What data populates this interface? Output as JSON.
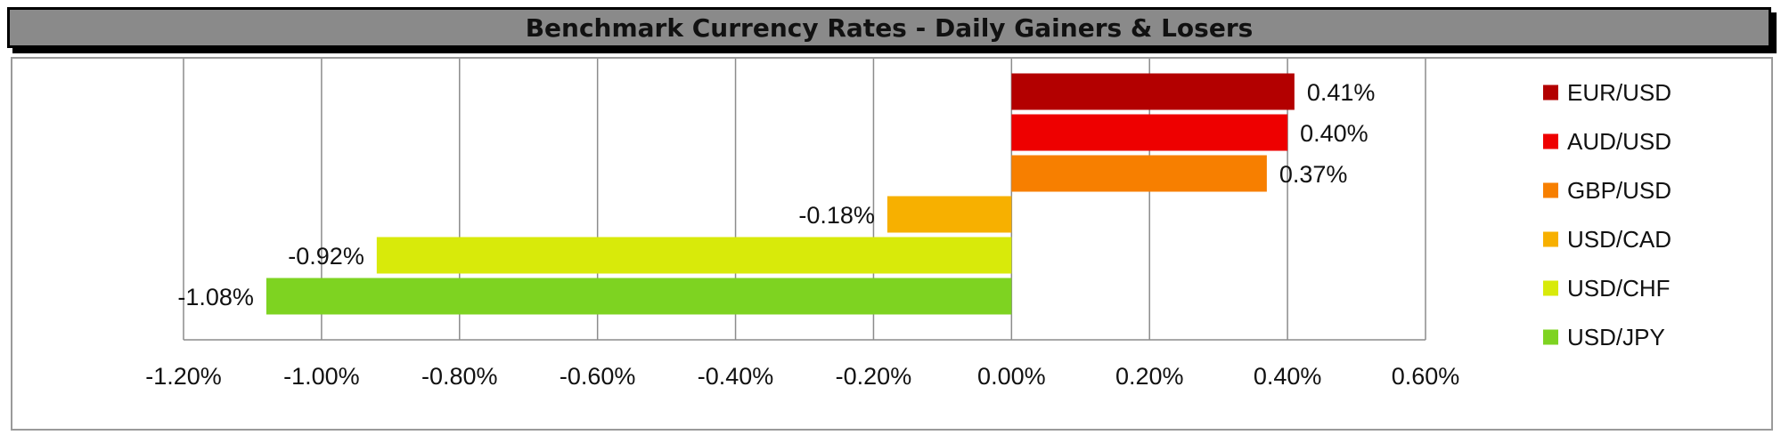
{
  "title": "Benchmark Currency Rates - Daily Gainers & Losers",
  "chart_data": {
    "type": "bar",
    "orientation": "horizontal",
    "categories": [
      "EUR/USD",
      "AUD/USD",
      "GBP/USD",
      "USD/CAD",
      "USD/CHF",
      "USD/JPY"
    ],
    "values": [
      0.41,
      0.4,
      0.37,
      -0.18,
      -0.92,
      -1.08
    ],
    "value_labels": [
      "0.41%",
      "0.40%",
      "0.37%",
      "-0.18%",
      "-0.92%",
      "-1.08%"
    ],
    "colors": [
      "#b30000",
      "#ee0000",
      "#f77f00",
      "#f7b000",
      "#d8ea0a",
      "#7ed321"
    ],
    "xlim": [
      -1.2,
      0.6
    ],
    "x_ticks": [
      -1.2,
      -1.0,
      -0.8,
      -0.6,
      -0.4,
      -0.2,
      0.0,
      0.2,
      0.4,
      0.6
    ],
    "x_tick_labels": [
      "-1.20%",
      "-1.00%",
      "-0.80%",
      "-0.60%",
      "-0.40%",
      "-0.20%",
      "0.00%",
      "0.20%",
      "0.40%",
      "0.60%"
    ],
    "grid": "vertical",
    "legend": {
      "position": "right",
      "entries": [
        "EUR/USD",
        "AUD/USD",
        "GBP/USD",
        "USD/CAD",
        "USD/CHF",
        "USD/JPY"
      ]
    },
    "xlabel": "",
    "ylabel": ""
  }
}
